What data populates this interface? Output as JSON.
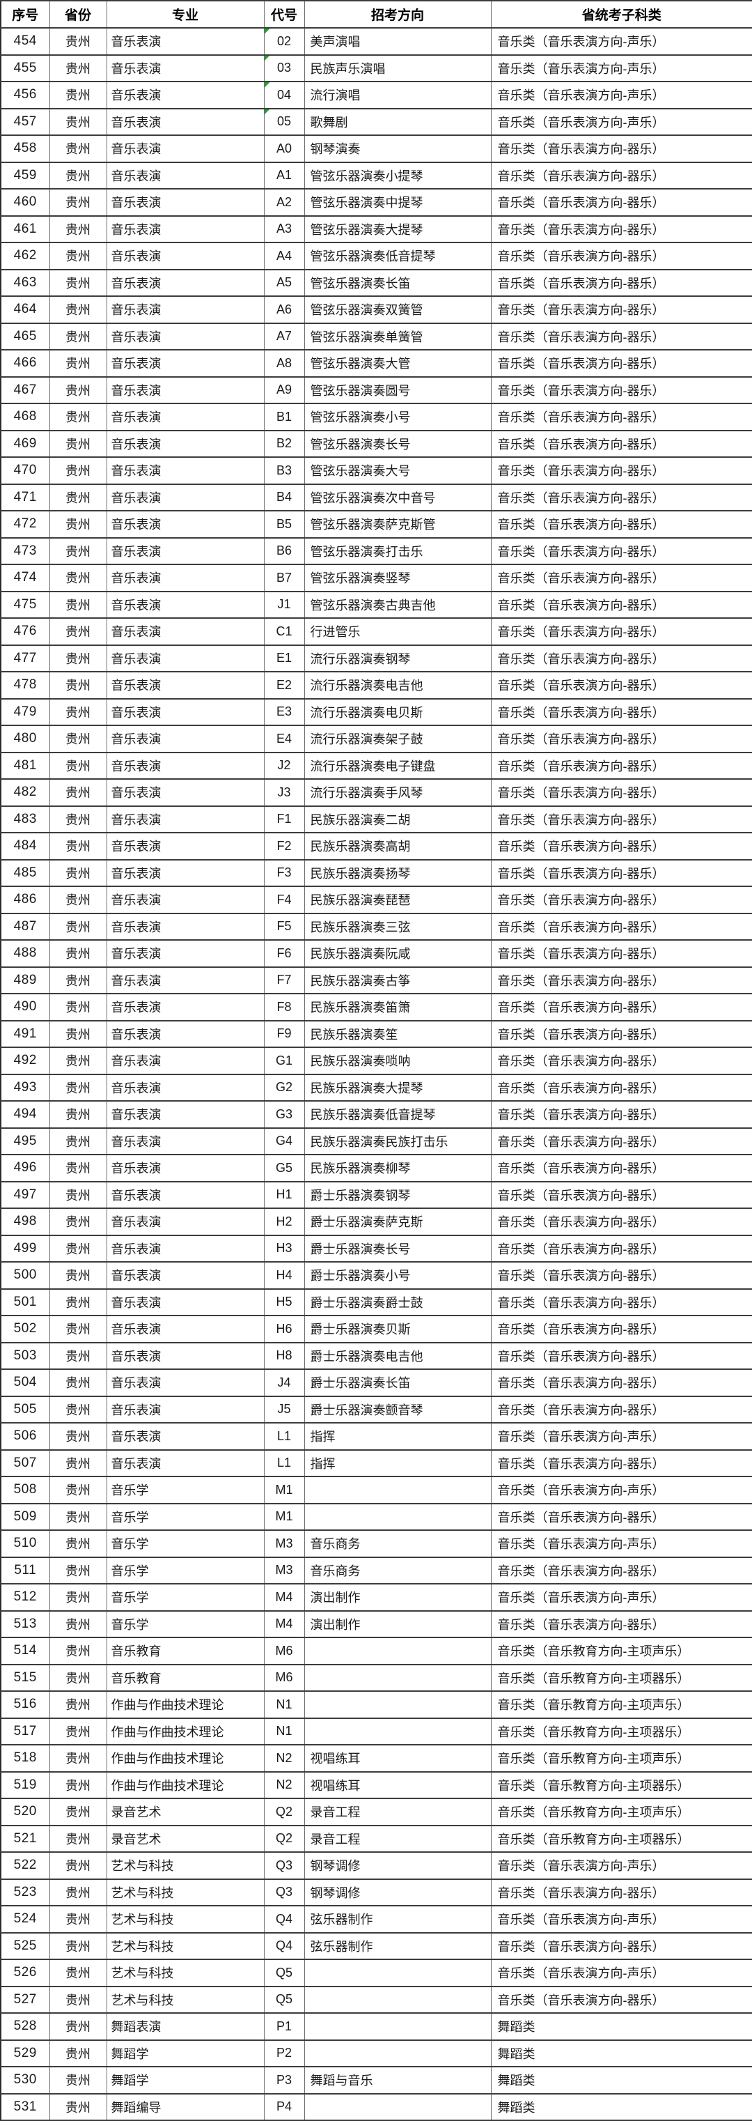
{
  "table": {
    "indicator_color": "#21a12e",
    "indicator_meaning": "number-stored-as-text-indicator",
    "columns": [
      "序号",
      "省份",
      "专业",
      "代号",
      "招考方向",
      "省统考子科类"
    ],
    "rows": [
      [
        "454",
        "贵州",
        "音乐表演",
        "02",
        "美声演唱",
        "音乐类（音乐表演方向-声乐）",
        1
      ],
      [
        "455",
        "贵州",
        "音乐表演",
        "03",
        "民族声乐演唱",
        "音乐类（音乐表演方向-声乐）",
        1
      ],
      [
        "456",
        "贵州",
        "音乐表演",
        "04",
        "流行演唱",
        "音乐类（音乐表演方向-声乐）",
        1
      ],
      [
        "457",
        "贵州",
        "音乐表演",
        "05",
        "歌舞剧",
        "音乐类（音乐表演方向-声乐）",
        1
      ],
      [
        "458",
        "贵州",
        "音乐表演",
        "A0",
        "钢琴演奏",
        "音乐类（音乐表演方向-器乐）",
        0
      ],
      [
        "459",
        "贵州",
        "音乐表演",
        "A1",
        "管弦乐器演奏小提琴",
        "音乐类（音乐表演方向-器乐）",
        0
      ],
      [
        "460",
        "贵州",
        "音乐表演",
        "A2",
        "管弦乐器演奏中提琴",
        "音乐类（音乐表演方向-器乐）",
        0
      ],
      [
        "461",
        "贵州",
        "音乐表演",
        "A3",
        "管弦乐器演奏大提琴",
        "音乐类（音乐表演方向-器乐）",
        0
      ],
      [
        "462",
        "贵州",
        "音乐表演",
        "A4",
        "管弦乐器演奏低音提琴",
        "音乐类（音乐表演方向-器乐）",
        0
      ],
      [
        "463",
        "贵州",
        "音乐表演",
        "A5",
        "管弦乐器演奏长笛",
        "音乐类（音乐表演方向-器乐）",
        0
      ],
      [
        "464",
        "贵州",
        "音乐表演",
        "A6",
        "管弦乐器演奏双簧管",
        "音乐类（音乐表演方向-器乐）",
        0
      ],
      [
        "465",
        "贵州",
        "音乐表演",
        "A7",
        "管弦乐器演奏单簧管",
        "音乐类（音乐表演方向-器乐）",
        0
      ],
      [
        "466",
        "贵州",
        "音乐表演",
        "A8",
        "管弦乐器演奏大管",
        "音乐类（音乐表演方向-器乐）",
        0
      ],
      [
        "467",
        "贵州",
        "音乐表演",
        "A9",
        "管弦乐器演奏圆号",
        "音乐类（音乐表演方向-器乐）",
        0
      ],
      [
        "468",
        "贵州",
        "音乐表演",
        "B1",
        "管弦乐器演奏小号",
        "音乐类（音乐表演方向-器乐）",
        0
      ],
      [
        "469",
        "贵州",
        "音乐表演",
        "B2",
        "管弦乐器演奏长号",
        "音乐类（音乐表演方向-器乐）",
        0
      ],
      [
        "470",
        "贵州",
        "音乐表演",
        "B3",
        "管弦乐器演奏大号",
        "音乐类（音乐表演方向-器乐）",
        0
      ],
      [
        "471",
        "贵州",
        "音乐表演",
        "B4",
        "管弦乐器演奏次中音号",
        "音乐类（音乐表演方向-器乐）",
        0
      ],
      [
        "472",
        "贵州",
        "音乐表演",
        "B5",
        "管弦乐器演奏萨克斯管",
        "音乐类（音乐表演方向-器乐）",
        0
      ],
      [
        "473",
        "贵州",
        "音乐表演",
        "B6",
        "管弦乐器演奏打击乐",
        "音乐类（音乐表演方向-器乐）",
        0
      ],
      [
        "474",
        "贵州",
        "音乐表演",
        "B7",
        "管弦乐器演奏竖琴",
        "音乐类（音乐表演方向-器乐）",
        0
      ],
      [
        "475",
        "贵州",
        "音乐表演",
        "J1",
        "管弦乐器演奏古典吉他",
        "音乐类（音乐表演方向-器乐）",
        0
      ],
      [
        "476",
        "贵州",
        "音乐表演",
        "C1",
        "行进管乐",
        "音乐类（音乐表演方向-器乐）",
        0
      ],
      [
        "477",
        "贵州",
        "音乐表演",
        "E1",
        "流行乐器演奏钢琴",
        "音乐类（音乐表演方向-器乐）",
        0
      ],
      [
        "478",
        "贵州",
        "音乐表演",
        "E2",
        "流行乐器演奏电吉他",
        "音乐类（音乐表演方向-器乐）",
        0
      ],
      [
        "479",
        "贵州",
        "音乐表演",
        "E3",
        "流行乐器演奏电贝斯",
        "音乐类（音乐表演方向-器乐）",
        0
      ],
      [
        "480",
        "贵州",
        "音乐表演",
        "E4",
        "流行乐器演奏架子鼓",
        "音乐类（音乐表演方向-器乐）",
        0
      ],
      [
        "481",
        "贵州",
        "音乐表演",
        "J2",
        "流行乐器演奏电子键盘",
        "音乐类（音乐表演方向-器乐）",
        0
      ],
      [
        "482",
        "贵州",
        "音乐表演",
        "J3",
        "流行乐器演奏手风琴",
        "音乐类（音乐表演方向-器乐）",
        0
      ],
      [
        "483",
        "贵州",
        "音乐表演",
        "F1",
        "民族乐器演奏二胡",
        "音乐类（音乐表演方向-器乐）",
        0
      ],
      [
        "484",
        "贵州",
        "音乐表演",
        "F2",
        "民族乐器演奏高胡",
        "音乐类（音乐表演方向-器乐）",
        0
      ],
      [
        "485",
        "贵州",
        "音乐表演",
        "F3",
        "民族乐器演奏扬琴",
        "音乐类（音乐表演方向-器乐）",
        0
      ],
      [
        "486",
        "贵州",
        "音乐表演",
        "F4",
        "民族乐器演奏琵琶",
        "音乐类（音乐表演方向-器乐）",
        0
      ],
      [
        "487",
        "贵州",
        "音乐表演",
        "F5",
        "民族乐器演奏三弦",
        "音乐类（音乐表演方向-器乐）",
        0
      ],
      [
        "488",
        "贵州",
        "音乐表演",
        "F6",
        "民族乐器演奏阮咸",
        "音乐类（音乐表演方向-器乐）",
        0
      ],
      [
        "489",
        "贵州",
        "音乐表演",
        "F7",
        "民族乐器演奏古筝",
        "音乐类（音乐表演方向-器乐）",
        0
      ],
      [
        "490",
        "贵州",
        "音乐表演",
        "F8",
        "民族乐器演奏笛箫",
        "音乐类（音乐表演方向-器乐）",
        0
      ],
      [
        "491",
        "贵州",
        "音乐表演",
        "F9",
        "民族乐器演奏笙",
        "音乐类（音乐表演方向-器乐）",
        0
      ],
      [
        "492",
        "贵州",
        "音乐表演",
        "G1",
        "民族乐器演奏唢呐",
        "音乐类（音乐表演方向-器乐）",
        0
      ],
      [
        "493",
        "贵州",
        "音乐表演",
        "G2",
        "民族乐器演奏大提琴",
        "音乐类（音乐表演方向-器乐）",
        0
      ],
      [
        "494",
        "贵州",
        "音乐表演",
        "G3",
        "民族乐器演奏低音提琴",
        "音乐类（音乐表演方向-器乐）",
        0
      ],
      [
        "495",
        "贵州",
        "音乐表演",
        "G4",
        "民族乐器演奏民族打击乐",
        "音乐类（音乐表演方向-器乐）",
        0
      ],
      [
        "496",
        "贵州",
        "音乐表演",
        "G5",
        "民族乐器演奏柳琴",
        "音乐类（音乐表演方向-器乐）",
        0
      ],
      [
        "497",
        "贵州",
        "音乐表演",
        "H1",
        "爵士乐器演奏钢琴",
        "音乐类（音乐表演方向-器乐）",
        0
      ],
      [
        "498",
        "贵州",
        "音乐表演",
        "H2",
        "爵士乐器演奏萨克斯",
        "音乐类（音乐表演方向-器乐）",
        0
      ],
      [
        "499",
        "贵州",
        "音乐表演",
        "H3",
        "爵士乐器演奏长号",
        "音乐类（音乐表演方向-器乐）",
        0
      ],
      [
        "500",
        "贵州",
        "音乐表演",
        "H4",
        "爵士乐器演奏小号",
        "音乐类（音乐表演方向-器乐）",
        0
      ],
      [
        "501",
        "贵州",
        "音乐表演",
        "H5",
        "爵士乐器演奏爵士鼓",
        "音乐类（音乐表演方向-器乐）",
        0
      ],
      [
        "502",
        "贵州",
        "音乐表演",
        "H6",
        "爵士乐器演奏贝斯",
        "音乐类（音乐表演方向-器乐）",
        0
      ],
      [
        "503",
        "贵州",
        "音乐表演",
        "H8",
        "爵士乐器演奏电吉他",
        "音乐类（音乐表演方向-器乐）",
        0
      ],
      [
        "504",
        "贵州",
        "音乐表演",
        "J4",
        "爵士乐器演奏长笛",
        "音乐类（音乐表演方向-器乐）",
        0
      ],
      [
        "505",
        "贵州",
        "音乐表演",
        "J5",
        "爵士乐器演奏颤音琴",
        "音乐类（音乐表演方向-器乐）",
        0
      ],
      [
        "506",
        "贵州",
        "音乐表演",
        "L1",
        "指挥",
        "音乐类（音乐表演方向-声乐）",
        0
      ],
      [
        "507",
        "贵州",
        "音乐表演",
        "L1",
        "指挥",
        "音乐类（音乐表演方向-器乐）",
        0
      ],
      [
        "508",
        "贵州",
        "音乐学",
        "M1",
        "",
        "音乐类（音乐表演方向-声乐）",
        0
      ],
      [
        "509",
        "贵州",
        "音乐学",
        "M1",
        "",
        "音乐类（音乐表演方向-器乐）",
        0
      ],
      [
        "510",
        "贵州",
        "音乐学",
        "M3",
        "音乐商务",
        "音乐类（音乐表演方向-声乐）",
        0
      ],
      [
        "511",
        "贵州",
        "音乐学",
        "M3",
        "音乐商务",
        "音乐类（音乐表演方向-器乐）",
        0
      ],
      [
        "512",
        "贵州",
        "音乐学",
        "M4",
        "演出制作",
        "音乐类（音乐表演方向-声乐）",
        0
      ],
      [
        "513",
        "贵州",
        "音乐学",
        "M4",
        "演出制作",
        "音乐类（音乐表演方向-器乐）",
        0
      ],
      [
        "514",
        "贵州",
        "音乐教育",
        "M6",
        "",
        "音乐类（音乐教育方向-主项声乐）",
        0
      ],
      [
        "515",
        "贵州",
        "音乐教育",
        "M6",
        "",
        "音乐类（音乐教育方向-主项器乐）",
        0
      ],
      [
        "516",
        "贵州",
        "作曲与作曲技术理论",
        "N1",
        "",
        "音乐类（音乐教育方向-主项声乐）",
        0
      ],
      [
        "517",
        "贵州",
        "作曲与作曲技术理论",
        "N1",
        "",
        "音乐类（音乐教育方向-主项器乐）",
        0
      ],
      [
        "518",
        "贵州",
        "作曲与作曲技术理论",
        "N2",
        "视唱练耳",
        "音乐类（音乐教育方向-主项声乐）",
        0
      ],
      [
        "519",
        "贵州",
        "作曲与作曲技术理论",
        "N2",
        "视唱练耳",
        "音乐类（音乐教育方向-主项器乐）",
        0
      ],
      [
        "520",
        "贵州",
        "录音艺术",
        "Q2",
        "录音工程",
        "音乐类（音乐教育方向-主项声乐）",
        0
      ],
      [
        "521",
        "贵州",
        "录音艺术",
        "Q2",
        "录音工程",
        "音乐类（音乐教育方向-主项器乐）",
        0
      ],
      [
        "522",
        "贵州",
        "艺术与科技",
        "Q3",
        "钢琴调修",
        "音乐类（音乐表演方向-声乐）",
        0
      ],
      [
        "523",
        "贵州",
        "艺术与科技",
        "Q3",
        "钢琴调修",
        "音乐类（音乐表演方向-器乐）",
        0
      ],
      [
        "524",
        "贵州",
        "艺术与科技",
        "Q4",
        "弦乐器制作",
        "音乐类（音乐表演方向-声乐）",
        0
      ],
      [
        "525",
        "贵州",
        "艺术与科技",
        "Q4",
        "弦乐器制作",
        "音乐类（音乐表演方向-器乐）",
        0
      ],
      [
        "526",
        "贵州",
        "艺术与科技",
        "Q5",
        "",
        "音乐类（音乐表演方向-声乐）",
        0
      ],
      [
        "527",
        "贵州",
        "艺术与科技",
        "Q5",
        "",
        "音乐类（音乐表演方向-器乐）",
        0
      ],
      [
        "528",
        "贵州",
        "舞蹈表演",
        "P1",
        "",
        "舞蹈类",
        0
      ],
      [
        "529",
        "贵州",
        "舞蹈学",
        "P2",
        "",
        "舞蹈类",
        0
      ],
      [
        "530",
        "贵州",
        "舞蹈学",
        "P3",
        "舞蹈与音乐",
        "舞蹈类",
        0
      ],
      [
        "531",
        "贵州",
        "舞蹈编导",
        "P4",
        "",
        "舞蹈类",
        0
      ]
    ]
  }
}
